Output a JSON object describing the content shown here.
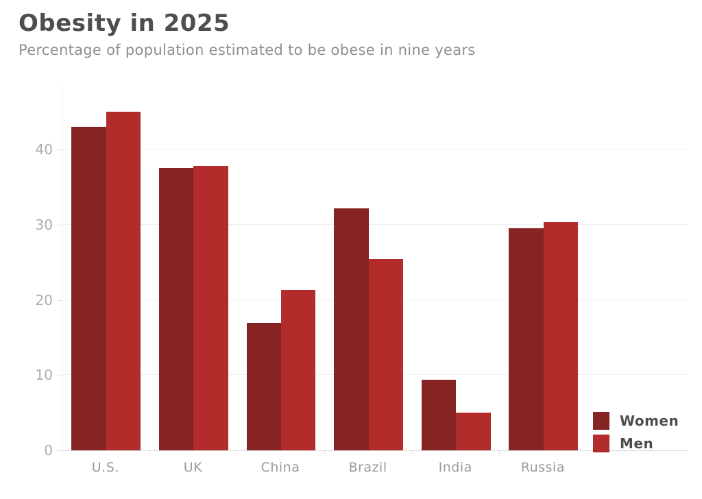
{
  "header": {
    "title": "Obesity in 2025",
    "subtitle": "Percentage of population estimated to be obese in nine years"
  },
  "chart_data": {
    "type": "bar",
    "title": "Obesity in 2025",
    "subtitle": "Percentage of population estimated to be obese in nine years",
    "categories": [
      "U.S.",
      "UK",
      "China",
      "Brazil",
      "India",
      "Russia"
    ],
    "series": [
      {
        "name": "Women",
        "color": "#862323",
        "values": [
          43,
          37.6,
          17,
          32.2,
          9.4,
          29.5
        ]
      },
      {
        "name": "Men",
        "color": "#b22c2c",
        "values": [
          45,
          37.8,
          21.3,
          25.4,
          5,
          30.4
        ]
      }
    ],
    "xlabel": "",
    "ylabel": "",
    "ylim": [
      0,
      48.5
    ],
    "yticks": [
      0,
      10,
      20,
      30,
      40
    ],
    "grid": true,
    "legend_position": "bottom-right",
    "colors": {
      "women_bar": "#862323",
      "men_bar": "#b22c2c",
      "title_text": "#4e4e4e",
      "subtitle_text": "#8f8f8f",
      "axis_label_text": "#999999",
      "gridline": "#efefef",
      "axis_line": "#d9d9d9"
    }
  }
}
